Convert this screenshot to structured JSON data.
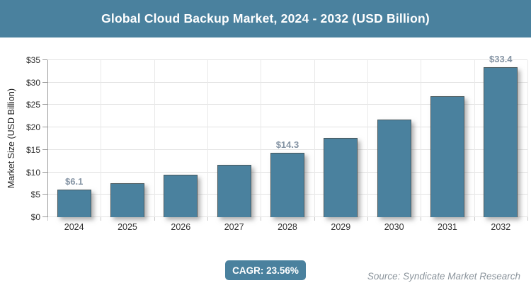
{
  "header": {
    "title": "Global Cloud Backup Market, 2024 - 2032 (USD Billion)"
  },
  "chart_data": {
    "type": "bar",
    "title": "Global Cloud Backup Market, 2024 - 2032 (USD Billion)",
    "categories": [
      "2024",
      "2025",
      "2026",
      "2027",
      "2028",
      "2029",
      "2030",
      "2031",
      "2032"
    ],
    "values": [
      6.1,
      7.6,
      9.4,
      11.6,
      14.3,
      17.7,
      21.8,
      26.9,
      33.4
    ],
    "data_labels": {
      "2024": "$6.1",
      "2028": "$14.3",
      "2032": "$33.4"
    },
    "xlabel": "",
    "ylabel": "Market Size (USD Billion)",
    "ylim": [
      0,
      35
    ],
    "ytick_step": 5,
    "ytick_prefix": "$",
    "grid": true,
    "legend": "none",
    "bar_color": "#4a819e"
  },
  "footer": {
    "cagr_badge": "CAGR: 23.56%",
    "source": "Source: Syndicate Market Research"
  },
  "colors": {
    "accent_teal": "#4a819e",
    "grid_line": "#e3e3e3",
    "axis_line": "#9b9b9b",
    "data_label_text": "#8594a4",
    "tick_label_text": "#2e2e2e",
    "source_text": "#8b949c",
    "title_text": "#ffffff"
  }
}
